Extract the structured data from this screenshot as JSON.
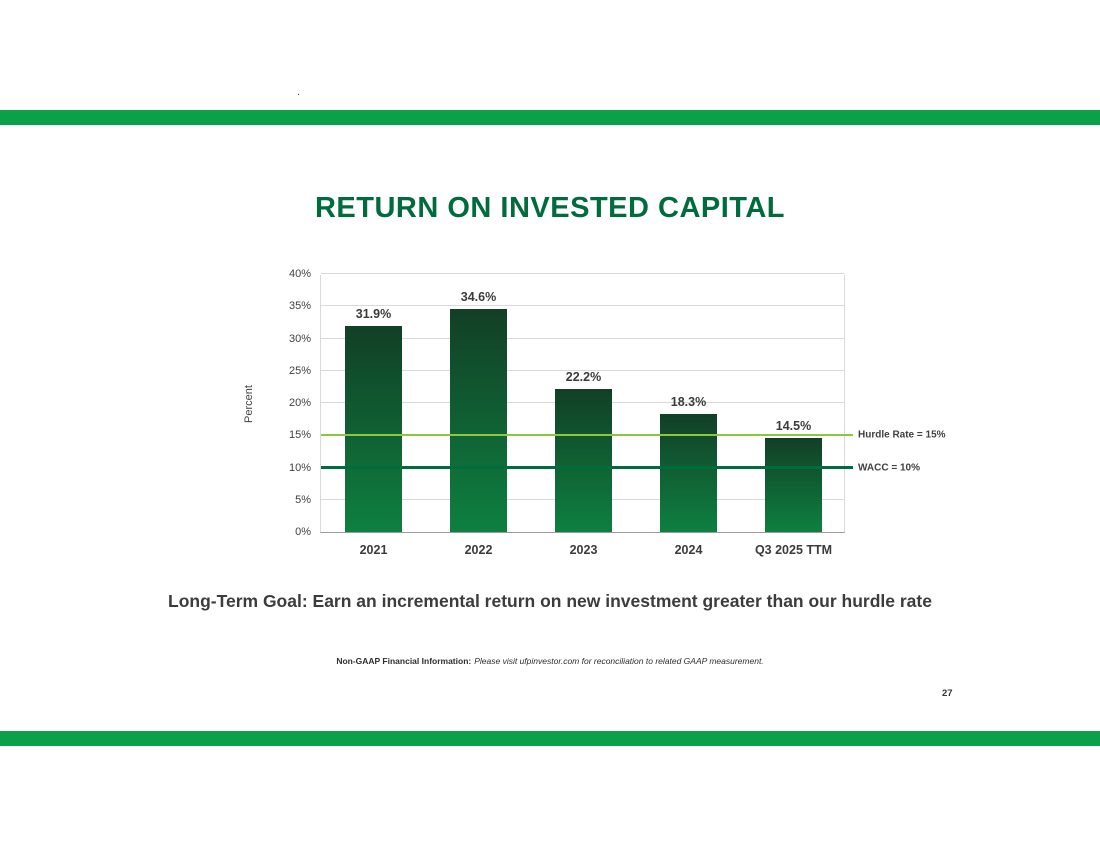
{
  "slide": {
    "stray_dot": ".",
    "title": "RETURN ON INVESTED CAPITAL",
    "goal": "Long-Term Goal: Earn an incremental return on new investment greater than our hurdle rate",
    "footnote_label": "Non-GAAP Financial Information:",
    "footnote_text": "Please visit ufpinvestor.com for reconciliation to related GAAP measurement.",
    "page_number": "27"
  },
  "colors": {
    "band_green": "#0ba14b",
    "title_green": "#006b3d",
    "bar_gradient_top": "#123f26",
    "bar_gradient_bottom": "#0e8040",
    "hurdle_line": "#8dc63f",
    "wacc_line": "#006b3d",
    "gridline": "#d9d9d9"
  },
  "chart_data": {
    "type": "bar",
    "title": "RETURN ON INVESTED CAPITAL",
    "categories": [
      "2021",
      "2022",
      "2023",
      "2024",
      "Q3 2025 TTM"
    ],
    "values": [
      31.9,
      34.6,
      22.2,
      18.3,
      14.5
    ],
    "data_labels": [
      "31.9%",
      "34.6%",
      "22.2%",
      "18.3%",
      "14.5%"
    ],
    "xlabel": "",
    "ylabel": "Percent",
    "ylim": [
      0,
      40
    ],
    "ytick_step": 5,
    "ytick_labels": [
      "0%",
      "5%",
      "10%",
      "15%",
      "20%",
      "25%",
      "30%",
      "35%",
      "40%"
    ],
    "grid": true,
    "legend_position": "none",
    "reference_lines": [
      {
        "label": "Hurdle Rate = 15%",
        "value": 15,
        "color": "#8dc63f",
        "thickness": 2
      },
      {
        "label": "WACC = 10%",
        "value": 10,
        "color": "#006b3d",
        "thickness": 3
      }
    ]
  }
}
